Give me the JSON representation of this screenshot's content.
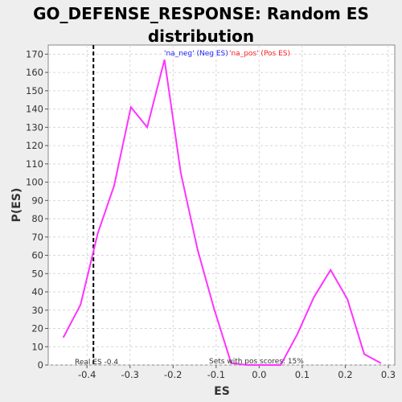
{
  "title_line1": "GO_DEFENSE_RESPONSE: Random ES",
  "title_line2": "distribution",
  "colors": {
    "line": "#FF33FF",
    "neg_text": "#2222FF",
    "pos_text": "#FF2222",
    "grid": "#D6D6D6",
    "plot_bg": "#FFFFFF",
    "page_bg": "#EEEEEE"
  },
  "chart_data": {
    "type": "line",
    "title": "GO_DEFENSE_RESPONSE: Random ES distribution",
    "xlabel": "ES",
    "ylabel": "P(ES)",
    "xlim": [
      -0.49,
      0.315
    ],
    "ylim": [
      0,
      175
    ],
    "xticks": [
      -0.4,
      -0.3,
      -0.2,
      -0.1,
      0.0,
      0.1,
      0.2,
      0.3
    ],
    "xtick_labels": [
      "-0.4",
      "-0.3",
      "-0.2",
      "-0.1",
      "0.0",
      "0.1",
      "0.2",
      "0.3"
    ],
    "yticks": [
      0,
      10,
      20,
      30,
      40,
      50,
      60,
      70,
      80,
      90,
      100,
      110,
      120,
      130,
      140,
      150,
      160,
      170
    ],
    "grid": true,
    "series": [
      {
        "x": [
          -0.455,
          -0.415,
          -0.375,
          -0.337,
          -0.298,
          -0.26,
          -0.22,
          -0.182,
          -0.143,
          -0.105,
          -0.065,
          -0.027,
          0.012,
          0.05,
          0.089,
          0.127,
          0.166,
          0.205,
          0.244,
          0.283
        ],
        "y": [
          15,
          33,
          72,
          98,
          141,
          130,
          167,
          105,
          63,
          31,
          1,
          0,
          0,
          0,
          17,
          37,
          52,
          36,
          6,
          1
        ]
      }
    ],
    "real_es": -0.385,
    "annotations": {
      "legend_neg": "'na_neg' (Neg ES)",
      "legend_pos": "'na_pos' (Pos ES)",
      "real_es_label": "Real ES -0.4",
      "pos_scores_label": "Sets with pos scores: 15%"
    }
  }
}
